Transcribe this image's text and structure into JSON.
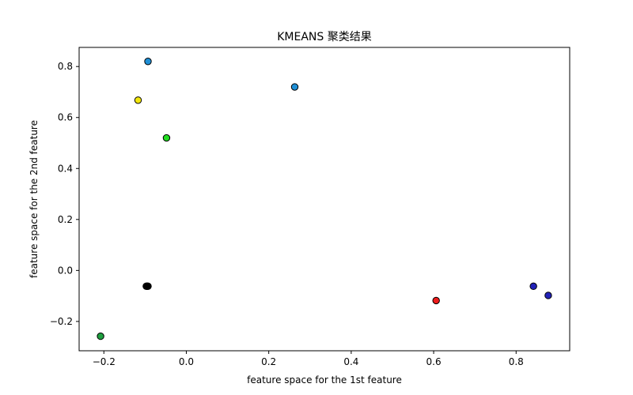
{
  "chart_data": {
    "type": "scatter",
    "title": "KMEANS 聚类结果",
    "xlabel": "feature space for the 1st feature",
    "ylabel": "feature space for the 2nd feature",
    "xlim": [
      -0.26,
      0.93
    ],
    "ylim": [
      -0.315,
      0.875
    ],
    "xticks": [
      -0.2,
      0.0,
      0.2,
      0.4,
      0.6,
      0.8
    ],
    "xtick_labels": [
      "−0.2",
      "0.0",
      "0.2",
      "0.4",
      "0.6",
      "0.8"
    ],
    "yticks": [
      -0.2,
      0.0,
      0.2,
      0.4,
      0.6,
      0.8
    ],
    "ytick_labels": [
      "−0.2",
      "0.0",
      "0.2",
      "0.4",
      "0.6",
      "0.8"
    ],
    "grid": false,
    "marker_edge_color": "#000000",
    "points": [
      {
        "x": -0.093,
        "y": 0.82,
        "color": "#1f8fd6"
      },
      {
        "x": 0.263,
        "y": 0.72,
        "color": "#1f8fd6"
      },
      {
        "x": -0.117,
        "y": 0.668,
        "color": "#f2e60d"
      },
      {
        "x": -0.048,
        "y": 0.52,
        "color": "#22dd22"
      },
      {
        "x": -0.097,
        "y": -0.062,
        "color": "#000000"
      },
      {
        "x": -0.095,
        "y": -0.062,
        "color": "#000000"
      },
      {
        "x": -0.093,
        "y": -0.062,
        "color": "#000000"
      },
      {
        "x": -0.208,
        "y": -0.258,
        "color": "#1f9f3f"
      },
      {
        "x": 0.606,
        "y": -0.118,
        "color": "#ee1c1c"
      },
      {
        "x": 0.842,
        "y": -0.062,
        "color": "#2222b8"
      },
      {
        "x": 0.878,
        "y": -0.098,
        "color": "#2222b8"
      }
    ]
  }
}
